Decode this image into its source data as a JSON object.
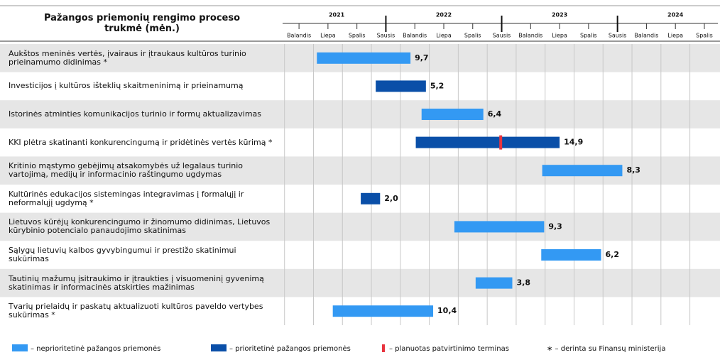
{
  "chart_data": {
    "type": "gantt",
    "title": "Pažangos priemonių rengimo proceso trukmė (mėn.)",
    "categories": [
      "Aukštos meninės vertės, įvairaus ir įtraukaus kultūros turinio prieinamumo didinimas *",
      "Investicijos į kultūros išteklių skaitmeninimą ir prieinamumą",
      "Istorinės atminties komunikacijos turinio ir formų aktualizavimas",
      "KKI plėtra skatinanti konkurencingumą ir pridėtinės vertės kūrimą *",
      "Kritinio mąstymo gebėjimų atsakomybės už legalaus turinio vartojimą, medijų ir informacinio raštingumo ugdymas",
      "Kultūrinės edukacijos sistemingas integravimas į formalųjį ir neformalųjį ugdymą *",
      "Lietuvos kūrėjų konkurencingumo ir žinomumo didinimas, Lietuvos kūrybinio potencialo panaudojimo skatinimas",
      "Sąlygų lietuvių kalbos gyvybingumui ir prestižo skatinimui sukūrimas",
      "Tautinių mažumų įsitraukimo ir įtraukties į visuomeninį gyvenimą skatinimas ir informacinės atskirties mažinimas",
      "Tvarių prielaidų ir paskatų aktualizuoti kultūros paveldo vertybes sukūrimas *"
    ],
    "start": [
      4.85,
      10.95,
      15.7,
      15.1,
      28.2,
      9.4,
      19.1,
      28.1,
      21.3,
      6.5
    ],
    "values": [
      9.7,
      5.2,
      6.4,
      14.9,
      8.3,
      2.0,
      9.3,
      6.2,
      3.8,
      10.4
    ],
    "value_labels": [
      "9,7",
      "5,2",
      "6,4",
      "14,9",
      "8,3",
      "2,0",
      "9,3",
      "6,2",
      "3,8",
      "10,4"
    ],
    "bar_colors": [
      "#3399f3",
      "#0a4fa8",
      "#3399f3",
      "#0a4fa8",
      "#3399f3",
      "#0a4fa8",
      "#3399f3",
      "#3399f3",
      "#3399f3",
      "#3399f3"
    ],
    "milestones": [
      {
        "category_index": 3,
        "x": 23.9,
        "color": "#e8343f"
      }
    ],
    "xlim": [
      1.3,
      46.4
    ],
    "xticks": [
      {
        "value": 3,
        "label": "Balandis"
      },
      {
        "value": 6,
        "label": "Liepa"
      },
      {
        "value": 9,
        "label": "Spalis"
      },
      {
        "value": 12,
        "label": "Sausis"
      },
      {
        "value": 15,
        "label": "Balandis"
      },
      {
        "value": 18,
        "label": "Liepa"
      },
      {
        "value": 21,
        "label": "Spalis"
      },
      {
        "value": 24,
        "label": "Sausis"
      },
      {
        "value": 27,
        "label": "Balandis"
      },
      {
        "value": 30,
        "label": "Liepa"
      },
      {
        "value": 33,
        "label": "Spalis"
      },
      {
        "value": 36,
        "label": "Sausis"
      },
      {
        "value": 39,
        "label": "Balandis"
      },
      {
        "value": 42,
        "label": "Liepa"
      },
      {
        "value": 45,
        "label": "Spalis"
      }
    ],
    "year_labels": [
      {
        "value": 6.9,
        "label": "2021"
      },
      {
        "value": 18,
        "label": "2022"
      },
      {
        "value": 30,
        "label": "2023"
      },
      {
        "value": 42,
        "label": "2024"
      }
    ],
    "year_ticks": [
      12,
      24,
      36
    ],
    "grid": true,
    "legend": [
      {
        "name": "– neprioritetinė pažangos priemonės",
        "color": "#3399f3"
      },
      {
        "name": "– prioritetinė pažangos priemonės",
        "color": "#0a4fa8"
      },
      {
        "name": "– planuotas patvirtinimo terminas",
        "color": "#e8343f"
      },
      {
        "name": "∗ – derinta su Finansų ministerija"
      }
    ]
  }
}
